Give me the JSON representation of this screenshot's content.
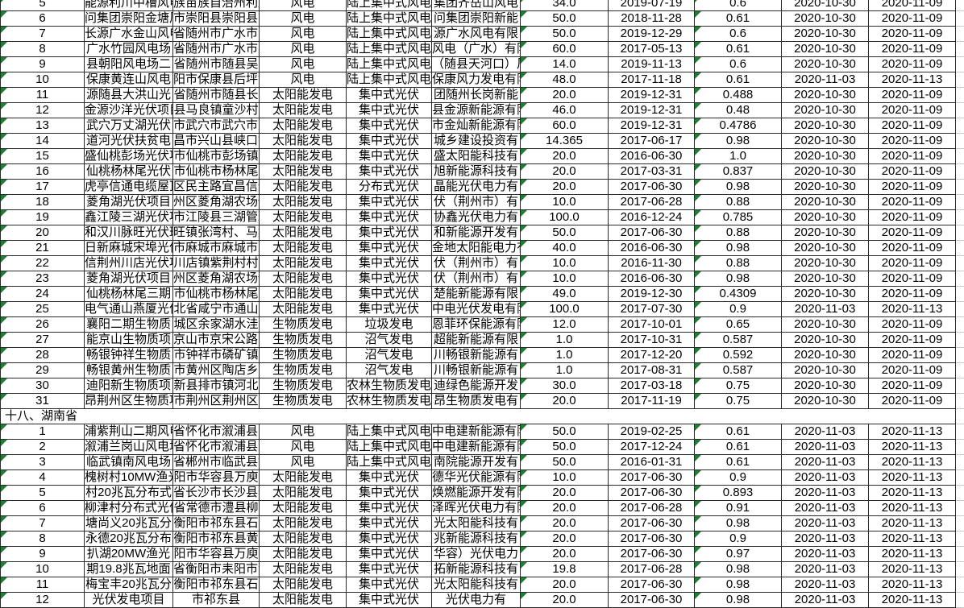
{
  "app": {
    "kind": "spreadsheet-grid",
    "visible_section_header": "十八、湖南省"
  },
  "colors": {
    "background": "#ffffff",
    "text": "#000000",
    "cell_border": "#2b2b2b",
    "gridline_light": "#c9c9c9",
    "error_indicator_green": "#1e7e34"
  },
  "table": {
    "columns": [
      {
        "key": "num",
        "name": "row-number",
        "flag": true
      },
      {
        "key": "name",
        "name": "project-name",
        "flag": false
      },
      {
        "key": "loc",
        "name": "location",
        "flag": false
      },
      {
        "key": "type",
        "name": "power-type",
        "flag": false
      },
      {
        "key": "sub",
        "name": "power-subtype",
        "flag": false
      },
      {
        "key": "co",
        "name": "company",
        "flag": false
      },
      {
        "key": "cap",
        "name": "capacity-mw",
        "flag": true
      },
      {
        "key": "d1",
        "name": "grid-date",
        "flag": false
      },
      {
        "key": "coef",
        "name": "coefficient",
        "flag": true
      },
      {
        "key": "d2",
        "name": "publish-date",
        "flag": false
      },
      {
        "key": "d3",
        "name": "deadline-date",
        "flag": false
      }
    ],
    "rows": [
      {
        "num": "5",
        "name": "能源利川中槽风电",
        "loc": "族苗族自治州利川",
        "type": "风电",
        "sub": "陆上集中式风电",
        "co": "集团齐岳山风电",
        "cap": "34.0",
        "d1": "2019-07-19",
        "coef": "0.6",
        "d2": "2020-10-30",
        "d3": "2020-11-09"
      },
      {
        "num": "6",
        "name": "问集团崇阳金塘风",
        "loc": "市崇阳县崇阳县高",
        "type": "风电",
        "sub": "陆上集中式风电",
        "co": "问集团崇阳新能",
        "cap": "50.0",
        "d1": "2018-11-28",
        "coef": "0.61",
        "d2": "2020-10-30",
        "d3": "2020-11-09"
      },
      {
        "num": "7",
        "name": "长源广水金山风电",
        "loc": "省随州市广水市陈",
        "type": "风电",
        "sub": "陆上集中式风电",
        "co": "源广水风电有限",
        "cap": "50.0",
        "d1": "2019-12-29",
        "coef": "0.6",
        "d2": "2020-10-30",
        "d3": "2020-11-09"
      },
      {
        "num": "8",
        "name": "广水竹园风电场",
        "loc": "省随州市广水市吴",
        "type": "风电",
        "sub": "陆上集中式风电",
        "co": "风电（广水）有限",
        "cap": "60.0",
        "d1": "2017-05-13",
        "coef": "0.61",
        "d2": "2020-10-30",
        "d3": "2020-11-09"
      },
      {
        "num": "9",
        "name": "县朝阳风电场二",
        "loc": "省随州市随县吴",
        "type": "风电",
        "sub": "陆上集中式风电",
        "co": "（随县天河口）风",
        "cap": "14.0",
        "d1": "2019-11-13",
        "coef": "0.6",
        "d2": "2020-10-30",
        "d3": "2020-11-09"
      },
      {
        "num": "10",
        "name": "保康黄连山风电",
        "loc": "阳市保康县后坪镇",
        "type": "风电",
        "sub": "陆上集中式风电",
        "co": "保康风力发电有限",
        "cap": "48.0",
        "d1": "2017-11-18",
        "coef": "0.61",
        "d2": "2020-11-03",
        "d3": "2020-11-13"
      },
      {
        "num": "11",
        "name": "源随县大洪山光",
        "loc": "省随州市随县长",
        "type": "太阳能发电",
        "sub": "集中式光伏",
        "co": "团随州长岗新能",
        "cap": "20.0",
        "d1": "2019-12-31",
        "coef": "0.488",
        "d2": "2020-10-30",
        "d3": "2020-11-09"
      },
      {
        "num": "12",
        "name": "金源沙洋光伏项目",
        "loc": "县马良镇童沙村",
        "type": "太阳能发电",
        "sub": "集中式光伏",
        "co": "县金源新能源有限",
        "cap": "46.0",
        "d1": "2019-12-31",
        "coef": "0.48",
        "d2": "2020-10-30",
        "d3": "2020-11-09"
      },
      {
        "num": "13",
        "name": "武穴万丈湖光伏",
        "loc": "市武穴市武穴市万",
        "type": "太阳能发电",
        "sub": "集中式光伏",
        "co": "市金灿新能源有限",
        "cap": "60.0",
        "d1": "2019-12-31",
        "coef": "0.4786",
        "d2": "2020-10-30",
        "d3": "2020-11-09"
      },
      {
        "num": "14",
        "name": "道河光伏扶贫电",
        "loc": "昌市兴山县峡口镇",
        "type": "太阳能发电",
        "sub": "集中式光伏",
        "co": "城乡建设投资有",
        "cap": "14.365",
        "d1": "2017-06-17",
        "coef": "0.98",
        "d2": "2020-10-30",
        "d3": "2020-11-09"
      },
      {
        "num": "15",
        "name": "盛仙桃彭场光伏项",
        "loc": "市仙桃市彭场镇",
        "type": "太阳能发电",
        "sub": "集中式光伏",
        "co": "盛太阳能科技有",
        "cap": "20.0",
        "d1": "2016-06-30",
        "coef": "1.0",
        "d2": "2020-10-30",
        "d3": "2020-11-09"
      },
      {
        "num": "16",
        "name": "仙桃杨林尾光伏",
        "loc": "市仙桃市杨林尾",
        "type": "太阳能发电",
        "sub": "集中式光伏",
        "co": "旭新能源科技有",
        "cap": "20.0",
        "d1": "2017-03-31",
        "coef": "0.837",
        "d2": "2020-10-30",
        "d3": "2020-11-09"
      },
      {
        "num": "17",
        "name": "虎亭信通电缆屋顶",
        "loc": "区民主路宜昌信通",
        "type": "太阳能发电",
        "sub": "分布式光伏",
        "co": "晶能光伏电力有",
        "cap": "20.0",
        "d1": "2017-06-30",
        "coef": "0.98",
        "d2": "2020-10-30",
        "d3": "2020-11-09"
      },
      {
        "num": "18",
        "name": "菱角湖光伏项目",
        "loc": "州区菱角湖农场保",
        "type": "太阳能发电",
        "sub": "集中式光伏",
        "co": "伏（荆州市）有",
        "cap": "10.0",
        "d1": "2017-06-28",
        "coef": "0.88",
        "d2": "2020-10-30",
        "d3": "2020-11-09"
      },
      {
        "num": "19",
        "name": "鑫江陵三湖光伏项",
        "loc": "市江陵县三湖管理",
        "type": "太阳能发电",
        "sub": "集中式光伏",
        "co": "协鑫光伏电力有",
        "cap": "100.0",
        "d1": "2016-12-24",
        "coef": "0.785",
        "d2": "2020-10-30",
        "d3": "2020-11-09"
      },
      {
        "num": "20",
        "name": "和汉川脉旺光伏班",
        "loc": "旺镇张湾村、马集",
        "type": "太阳能发电",
        "sub": "集中式光伏",
        "co": "和新能源开发有",
        "cap": "50.0",
        "d1": "2017-06-30",
        "coef": "0.88",
        "d2": "2020-10-30",
        "d3": "2020-11-09"
      },
      {
        "num": "21",
        "name": "日新麻城宋埠光伏",
        "loc": "市麻城市麻城市宋",
        "type": "太阳能发电",
        "sub": "集中式光伏",
        "co": "金地太阳能电力有",
        "cap": "40.0",
        "d1": "2016-06-30",
        "coef": "0.98",
        "d2": "2020-10-30",
        "d3": "2020-11-09"
      },
      {
        "num": "22",
        "name": "信荆州川店光伏项",
        "loc": "川店镇紫荆村村",
        "type": "太阳能发电",
        "sub": "集中式光伏",
        "co": "伏（荆州市）有",
        "cap": "10.0",
        "d1": "2016-11-30",
        "coef": "0.88",
        "d2": "2020-10-30",
        "d3": "2020-11-09"
      },
      {
        "num": "23",
        "name": "菱角湖光伏项目",
        "loc": "州区菱角湖农场保",
        "type": "太阳能发电",
        "sub": "集中式光伏",
        "co": "伏（荆州市）有",
        "cap": "10.0",
        "d1": "2016-06-30",
        "coef": "0.98",
        "d2": "2020-10-30",
        "d3": "2020-11-09"
      },
      {
        "num": "24",
        "name": "仙桃杨林尾三期",
        "loc": "市仙桃市杨林尾",
        "type": "太阳能发电",
        "sub": "集中式光伏",
        "co": "楚能新能源有限",
        "cap": "49.0",
        "d1": "2019-12-30",
        "coef": "0.4309",
        "d2": "2020-10-30",
        "d3": "2020-11-09"
      },
      {
        "num": "25",
        "name": "电气通山燕厦光伏",
        "loc": "北省咸宁市通山",
        "type": "太阳能发电",
        "sub": "集中式光伏",
        "co": "中电光伏发电有限",
        "cap": "100.0",
        "d1": "2017-07-30",
        "coef": "0.9",
        "d2": "2020-11-03",
        "d3": "2020-11-13"
      },
      {
        "num": "26",
        "name": "襄阳二期生物质",
        "loc": "城区余家湖水洼",
        "type": "生物质发电",
        "sub": "垃圾发电",
        "co": "恩菲环保能源有限",
        "cap": "12.0",
        "d1": "2017-10-01",
        "coef": "0.65",
        "d2": "2020-10-30",
        "d3": "2020-11-09"
      },
      {
        "num": "27",
        "name": "能京山生物质项",
        "loc": "京山市京宋公路1",
        "type": "生物质发电",
        "sub": "沼气发电",
        "co": "超能新能源有限",
        "cap": "1.0",
        "d1": "2017-10-31",
        "coef": "0.587",
        "d2": "2020-10-30",
        "d3": "2020-11-09"
      },
      {
        "num": "28",
        "name": "畅银钟祥生物质",
        "loc": "市钟祥市磷矿镇",
        "type": "生物质发电",
        "sub": "沼气发电",
        "co": "川畅银新能源有",
        "cap": "1.0",
        "d1": "2017-12-20",
        "coef": "0.592",
        "d2": "2020-10-30",
        "d3": "2020-11-09"
      },
      {
        "num": "29",
        "name": "畅银黄州生物质",
        "loc": "市黄州区陶店乡",
        "type": "生物质发电",
        "sub": "沼气发电",
        "co": "川畅银新能源有",
        "cap": "1.0",
        "d1": "2017-08-31",
        "coef": "0.587",
        "d2": "2020-10-30",
        "d3": "2020-11-09"
      },
      {
        "num": "30",
        "name": "迪阳新生物质项",
        "loc": "新县排市镇河北",
        "type": "生物质发电",
        "sub": "农林生物质发电",
        "co": "迪绿色能源开发",
        "cap": "30.0",
        "d1": "2017-03-18",
        "coef": "0.75",
        "d2": "2020-10-30",
        "d3": "2020-11-09"
      },
      {
        "num": "31",
        "name": "昂荆州区生物质项",
        "loc": "市荆州区荆州区",
        "type": "生物质发电",
        "sub": "农林生物质发电",
        "co": "昂生物质发电有",
        "cap": "20.0",
        "d1": "2017-11-19",
        "coef": "0.75",
        "d2": "2020-10-30",
        "d3": "2020-11-09"
      },
      {
        "section": "十八、湖南省"
      },
      {
        "num": "1",
        "name": "浦紫荆山二期风电",
        "loc": "省怀化市溆浦县卢",
        "type": "风电",
        "sub": "陆上集中式风电",
        "co": "中电建新能源有限",
        "cap": "50.0",
        "d1": "2019-02-25",
        "coef": "0.61",
        "d2": "2020-11-03",
        "d3": "2020-11-13"
      },
      {
        "num": "2",
        "name": "溆浦兰岗山风电场",
        "loc": "省怀化市溆浦县大",
        "type": "风电",
        "sub": "陆上集中式风电",
        "co": "中电建新能源有限",
        "cap": "50.0",
        "d1": "2017-12-24",
        "coef": "0.61",
        "d2": "2020-11-03",
        "d3": "2020-11-13"
      },
      {
        "num": "3",
        "name": "临武镇南风电场",
        "loc": "省郴州市临武县镇",
        "type": "风电",
        "sub": "陆上集中式风电",
        "co": "南院能源开发有",
        "cap": "50.0",
        "d1": "2016-01-31",
        "coef": "0.61",
        "d2": "2020-11-03",
        "d3": "2020-11-13"
      },
      {
        "num": "4",
        "name": "槐树村10MW渔光",
        "loc": "阳市华容县万庾",
        "type": "太阳能发电",
        "sub": "集中式光伏",
        "co": "德华光伏能源有限",
        "cap": "10.0",
        "d1": "2017-06-30",
        "coef": "0.9",
        "d2": "2020-11-03",
        "d3": "2020-11-13"
      },
      {
        "num": "5",
        "name": "村20兆瓦分布式",
        "loc": "省长沙市长沙县春",
        "type": "太阳能发电",
        "sub": "集中式光伏",
        "co": "焕燃能源开发有限",
        "cap": "20.0",
        "d1": "2017-06-30",
        "coef": "0.893",
        "d2": "2020-11-03",
        "d3": "2020-11-13"
      },
      {
        "num": "6",
        "name": "柳津村分布式光伏",
        "loc": "省常德市澧县柳",
        "type": "太阳能发电",
        "sub": "集中式光伏",
        "co": "泽晖光伏电力有限",
        "cap": "20.0",
        "d1": "2017-06-28",
        "coef": "0.91",
        "d2": "2020-11-03",
        "d3": "2020-11-13"
      },
      {
        "num": "7",
        "name": "塘尚义20兆瓦分",
        "loc": "衡阳市祁东县石",
        "type": "太阳能发电",
        "sub": "集中式光伏",
        "co": "光太阳能科技有",
        "cap": "20.0",
        "d1": "2017-06-30",
        "coef": "0.98",
        "d2": "2020-11-03",
        "d3": "2020-11-13"
      },
      {
        "num": "8",
        "name": "永德20兆瓦分布",
        "loc": "衡阳市祁东县黄",
        "type": "太阳能发电",
        "sub": "集中式光伏",
        "co": "兆新能源科技有",
        "cap": "20.0",
        "d1": "2017-06-30",
        "coef": "0.9",
        "d2": "2020-11-03",
        "d3": "2020-11-13"
      },
      {
        "num": "9",
        "name": "扒湖20MW渔光",
        "loc": "阳市华容县万庾",
        "type": "太阳能发电",
        "sub": "集中式光伏",
        "co": "华容）光伏电力",
        "cap": "20.0",
        "d1": "2017-06-30",
        "coef": "0.97",
        "d2": "2020-11-03",
        "d3": "2020-11-13"
      },
      {
        "num": "10",
        "name": "期19.8兆瓦地面",
        "loc": "省衡阳市耒阳市湖",
        "type": "太阳能发电",
        "sub": "集中式光伏",
        "co": "拓新能源科技有",
        "cap": "19.8",
        "d1": "2017-06-28",
        "coef": "0.98",
        "d2": "2020-11-03",
        "d3": "2020-11-13"
      },
      {
        "num": "11",
        "name": "梅宝丰20兆瓦分",
        "loc": "衡阳市祁东县石",
        "type": "太阳能发电",
        "sub": "集中式光伏",
        "co": "光太阳能科技有",
        "cap": "20.0",
        "d1": "2017-06-30",
        "coef": "0.98",
        "d2": "2020-11-03",
        "d3": "2020-11-13"
      },
      {
        "num": "12",
        "name": "光伏发电项目",
        "loc": "市祁东县",
        "type": "太阳能发电",
        "sub": "集中式光伏",
        "co": "光伏电力有",
        "cap": "20.0",
        "d1": "2017-06-30",
        "coef": "0.98",
        "d2": "2020-11-03",
        "d3": "2020-11-13"
      }
    ]
  }
}
